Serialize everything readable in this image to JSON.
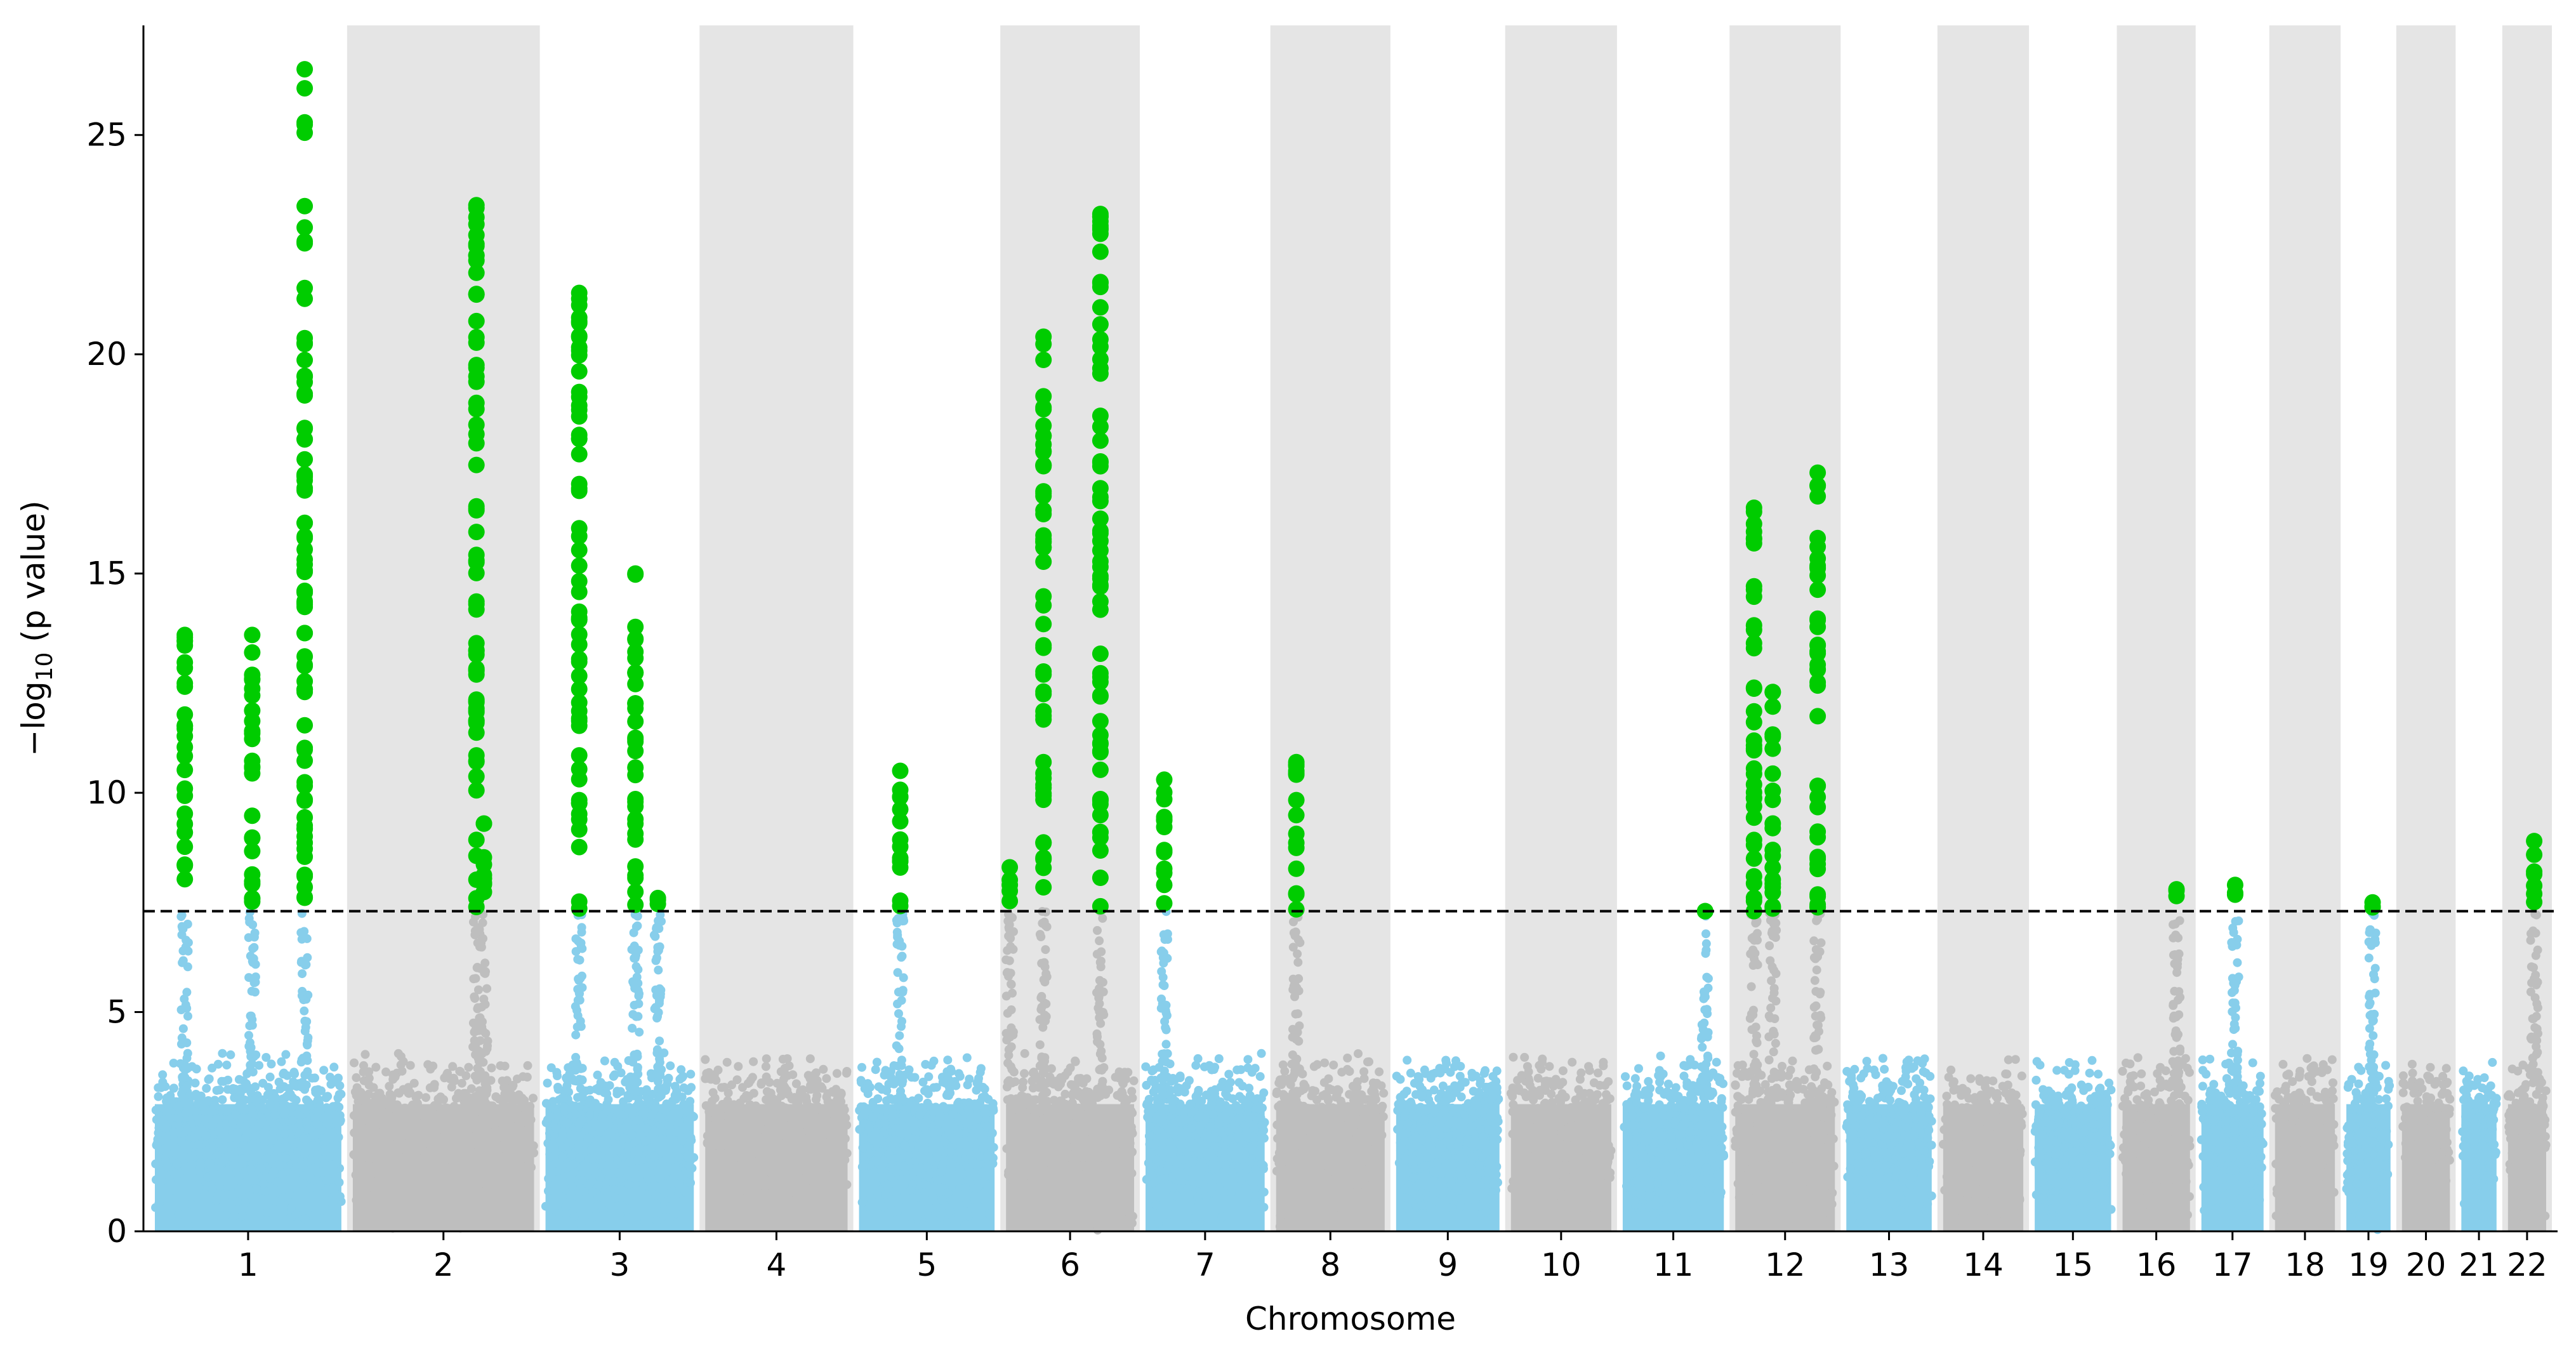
{
  "chart_data": {
    "type": "scatter",
    "title": "",
    "xlabel": "Chromosome",
    "ylabel_prefix": "−log",
    "ylabel_sub": "10",
    "ylabel_suffix": " (p value)",
    "ylim": [
      0,
      27.5
    ],
    "yticks": [
      0,
      5,
      10,
      15,
      20,
      25
    ],
    "significance_threshold": 7.3,
    "threshold_style": "dashed black line",
    "grid": false,
    "legend": "none",
    "colors": {
      "odd_chromosome": "#87ceeb",
      "even_chromosome": "#bebebe",
      "significant": "#00cc00",
      "band_shade": "#e5e5e5",
      "threshold": "#000000"
    },
    "x_axis": "cumulative genomic position (Mb)",
    "chromosomes": [
      {
        "label": "1",
        "length_mb": 249
      },
      {
        "label": "2",
        "length_mb": 242
      },
      {
        "label": "3",
        "length_mb": 198
      },
      {
        "label": "4",
        "length_mb": 190
      },
      {
        "label": "5",
        "length_mb": 181
      },
      {
        "label": "6",
        "length_mb": 171
      },
      {
        "label": "7",
        "length_mb": 159
      },
      {
        "label": "8",
        "length_mb": 145
      },
      {
        "label": "9",
        "length_mb": 138
      },
      {
        "label": "10",
        "length_mb": 134
      },
      {
        "label": "11",
        "length_mb": 135
      },
      {
        "label": "12",
        "length_mb": 133
      },
      {
        "label": "13",
        "length_mb": 114
      },
      {
        "label": "14",
        "length_mb": 107
      },
      {
        "label": "15",
        "length_mb": 102
      },
      {
        "label": "16",
        "length_mb": 90
      },
      {
        "label": "17",
        "length_mb": 83
      },
      {
        "label": "18",
        "length_mb": 80
      },
      {
        "label": "19",
        "length_mb": 59
      },
      {
        "label": "20",
        "length_mb": 64
      },
      {
        "label": "21",
        "length_mb": 47
      },
      {
        "label": "22",
        "length_mb": 51
      }
    ],
    "peaks": [
      {
        "chrom": "1",
        "pos_mb": 40,
        "max": 13.6
      },
      {
        "chrom": "1",
        "pos_mb": 130,
        "max": 13.6
      },
      {
        "chrom": "1",
        "pos_mb": 200,
        "max": 26.5
      },
      {
        "chrom": "2",
        "pos_mb": 165,
        "max": 23.4
      },
      {
        "chrom": "2",
        "pos_mb": 175,
        "max": 9.3
      },
      {
        "chrom": "3",
        "pos_mb": 45,
        "max": 21.4
      },
      {
        "chrom": "3",
        "pos_mb": 120,
        "max": 15.0
      },
      {
        "chrom": "3",
        "pos_mb": 150,
        "max": 7.6
      },
      {
        "chrom": "5",
        "pos_mb": 55,
        "max": 10.5
      },
      {
        "chrom": "6",
        "pos_mb": 5,
        "max": 8.3
      },
      {
        "chrom": "6",
        "pos_mb": 50,
        "max": 20.4
      },
      {
        "chrom": "6",
        "pos_mb": 126,
        "max": 23.2
      },
      {
        "chrom": "7",
        "pos_mb": 25,
        "max": 10.3
      },
      {
        "chrom": "8",
        "pos_mb": 27,
        "max": 10.7
      },
      {
        "chrom": "11",
        "pos_mb": 110,
        "max": 7.3
      },
      {
        "chrom": "12",
        "pos_mb": 25,
        "max": 16.5
      },
      {
        "chrom": "12",
        "pos_mb": 50,
        "max": 12.3
      },
      {
        "chrom": "12",
        "pos_mb": 110,
        "max": 17.3
      },
      {
        "chrom": "16",
        "pos_mb": 72,
        "max": 7.8
      },
      {
        "chrom": "17",
        "pos_mb": 45,
        "max": 7.9
      },
      {
        "chrom": "19",
        "pos_mb": 35,
        "max": 7.5
      },
      {
        "chrom": "22",
        "pos_mb": 35,
        "max": 8.9
      }
    ]
  }
}
